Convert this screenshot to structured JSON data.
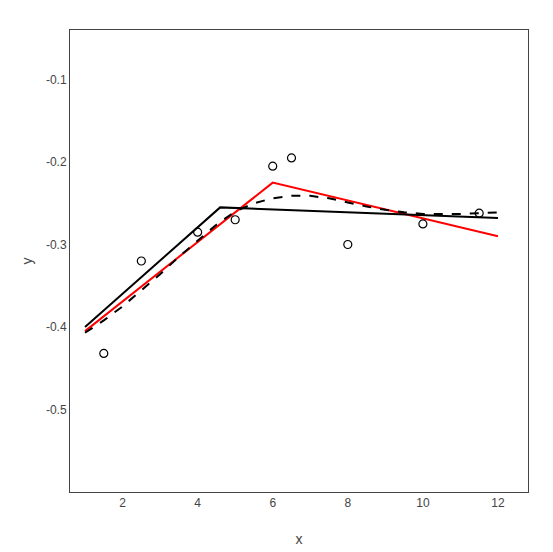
{
  "chart_data": {
    "type": "line",
    "xlabel": "x",
    "ylabel": "y",
    "xlim": [
      0.6,
      12.8
    ],
    "ylim": [
      -0.6,
      -0.04
    ],
    "xticks": [
      2,
      4,
      6,
      8,
      10,
      12
    ],
    "yticks": [
      -0.5,
      -0.4,
      -0.3,
      -0.2,
      -0.1
    ],
    "grid": false,
    "series": [
      {
        "type": "line",
        "color": "red",
        "line_style": "solid",
        "x": [
          1.0,
          6.0,
          12.0
        ],
        "values": [
          -0.405,
          -0.225,
          -0.29
        ]
      },
      {
        "type": "line",
        "color": "black",
        "line_style": "solid",
        "x": [
          1.0,
          4.6,
          12.0
        ],
        "values": [
          -0.4,
          -0.255,
          -0.268
        ]
      },
      {
        "type": "line",
        "color": "black",
        "line_style": "dashed",
        "x": [
          1.0,
          1.5,
          2.0,
          2.5,
          3.0,
          3.5,
          4.0,
          4.5,
          5.0,
          5.5,
          6.0,
          6.5,
          7.0,
          7.5,
          8.0,
          8.5,
          9.0,
          9.5,
          10.0,
          10.5,
          11.0,
          11.5,
          12.0
        ],
        "values": [
          -0.407,
          -0.392,
          -0.375,
          -0.356,
          -0.336,
          -0.315,
          -0.296,
          -0.276,
          -0.26,
          -0.25,
          -0.244,
          -0.241,
          -0.241,
          -0.244,
          -0.249,
          -0.254,
          -0.258,
          -0.261,
          -0.263,
          -0.263,
          -0.263,
          -0.262,
          -0.261
        ]
      },
      {
        "type": "scatter",
        "color": "black",
        "marker": "circle-open",
        "x": [
          1.5,
          2.5,
          4.0,
          5.0,
          6.0,
          6.5,
          8.0,
          10.0,
          11.5
        ],
        "values": [
          -0.432,
          -0.32,
          -0.285,
          -0.27,
          -0.205,
          -0.195,
          -0.3,
          -0.275,
          -0.262
        ]
      }
    ]
  }
}
